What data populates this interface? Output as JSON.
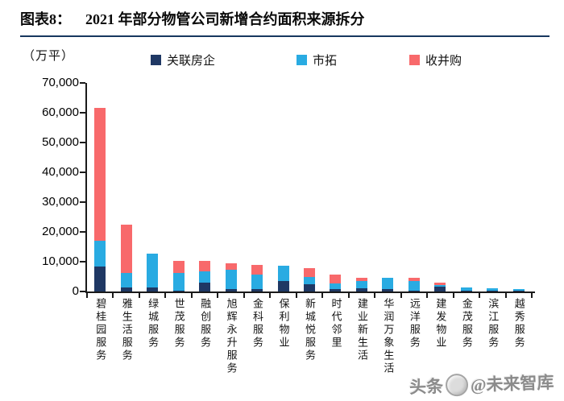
{
  "header": {
    "tag": "图表8：",
    "title": "2021 年部分物管公司新增合约面积来源拆分"
  },
  "axis_unit": "（万平）",
  "watermark": {
    "prefix": "头条",
    "suffix": "@未来智库"
  },
  "colors": {
    "related_developer": "#1F3864",
    "market_expansion": "#29ABE2",
    "merger_acquisition": "#F8696B",
    "title_rule": "#17375E",
    "axis": "#1A1A1A"
  },
  "chart_data": {
    "type": "bar",
    "stacked": true,
    "title": "2021 年部分物管公司新增合约面积来源拆分",
    "ylabel": "（万平）",
    "unit": "万平",
    "ylim": [
      0,
      70000
    ],
    "ytick_step": 10000,
    "ytick_labels": [
      "0",
      "10,000",
      "20,000",
      "30,000",
      "40,000",
      "50,000",
      "60,000",
      "70,000"
    ],
    "grid": false,
    "legend_position": "top",
    "categories": [
      "碧桂园服务",
      "雅生活服务",
      "绿城服务",
      "世茂服务",
      "融创服务",
      "旭辉永升服务",
      "金科服务",
      "保利物业",
      "新城悦服务",
      "时代邻里",
      "建业新生活",
      "华润万象生活",
      "远洋服务",
      "建发物业",
      "金茂服务",
      "滨江服务",
      "越秀服务"
    ],
    "series": [
      {
        "name": "关联房企",
        "color": "#1F3864",
        "values": [
          8500,
          1300,
          1450,
          300,
          3000,
          900,
          800,
          3450,
          2400,
          750,
          1200,
          850,
          400,
          1700,
          300,
          200,
          400
        ]
      },
      {
        "name": "市拓",
        "color": "#29ABE2",
        "values": [
          8500,
          4800,
          11350,
          5800,
          3800,
          6300,
          5000,
          5300,
          2500,
          2050,
          2250,
          3850,
          3100,
          600,
          1100,
          1000,
          350
        ]
      },
      {
        "name": "收并购",
        "color": "#F8696B",
        "values": [
          44700,
          16400,
          0,
          4300,
          3400,
          2200,
          3200,
          0,
          3000,
          2750,
          1200,
          0,
          1000,
          700,
          0,
          0,
          0
        ]
      }
    ]
  }
}
